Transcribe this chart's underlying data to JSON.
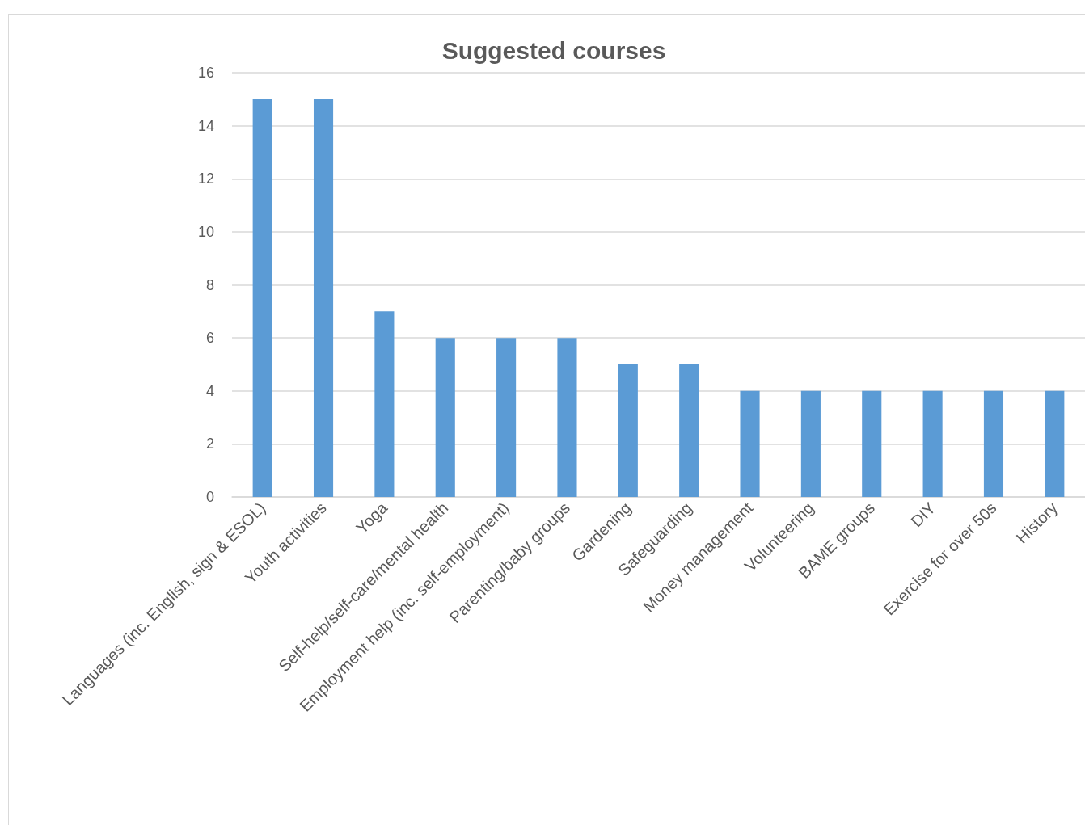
{
  "chart_data": {
    "type": "bar",
    "title": "Suggested courses",
    "categories": [
      "Languages (inc. English, sign & ESOL)",
      "Youth activities",
      "Yoga",
      "Self-help/self-care/mental health",
      "Employment help (inc. self-employment)",
      "Parenting/baby groups",
      "Gardening",
      "Safeguarding",
      "Money management",
      "Volunteering",
      "BAME groups",
      "DIY",
      "Exercise for over 50s",
      "History"
    ],
    "values": [
      15,
      15,
      7,
      6,
      6,
      6,
      5,
      5,
      4,
      4,
      4,
      4,
      4,
      4
    ],
    "color": "#5b9bd5",
    "ylim": [
      0,
      16
    ],
    "yticks": [
      0,
      2,
      4,
      6,
      8,
      10,
      12,
      14,
      16
    ],
    "grid": "y"
  }
}
